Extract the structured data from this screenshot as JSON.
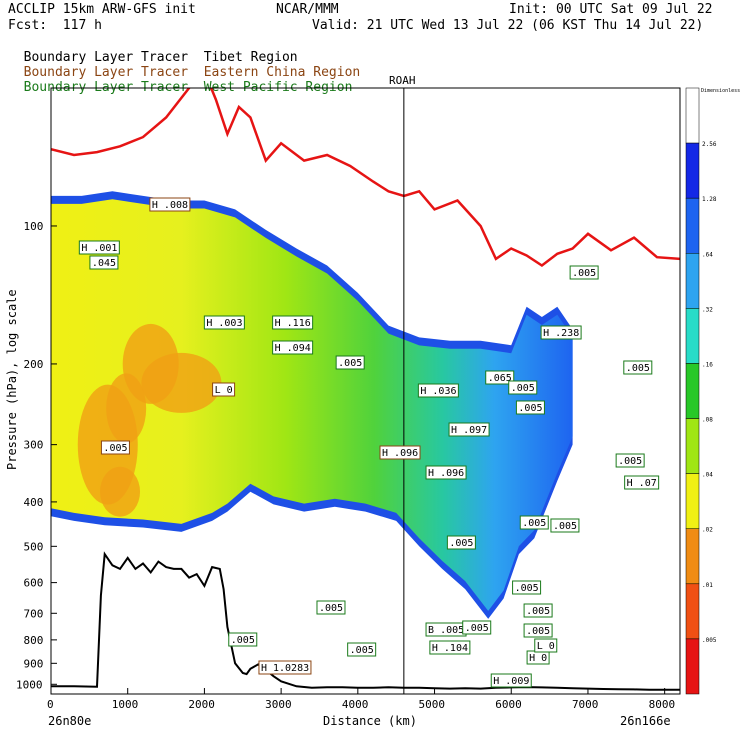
{
  "header": {
    "model": "ACCLIP 15km ARW-GFS init",
    "org": "NCAR/MMM",
    "init": "Init: 00 UTC Sat 09 Jul 22",
    "fcst": "Fcst:  117 h",
    "valid": "Valid: 21 UTC Wed 13 Jul 22 (06 KST Thu 14 Jul 22)"
  },
  "legend": [
    {
      "label": "Boundary Layer Tracer",
      "region": "Tibet Region",
      "color": "#000000"
    },
    {
      "label": "Boundary Layer Tracer",
      "region": "Eastern China Region",
      "color": "#8b4513"
    },
    {
      "label": "Boundary Layer Tracer",
      "region": "West Pacific Region",
      "color": "#1a7a1a"
    }
  ],
  "chart_data": {
    "type": "heatmap",
    "ylabel": "Pressure (hPa), log scale",
    "xlabel": "Distance (km)",
    "x_start_label": "26n80e",
    "x_end_label": "26n166e",
    "station_label": "ROAH",
    "station_x": 4600,
    "xlim": [
      0,
      8200
    ],
    "ylim": [
      1050,
      50
    ],
    "yscale": "log",
    "x_ticks": [
      "0",
      "1000",
      "2000",
      "3000",
      "4000",
      "5000",
      "6000",
      "7000",
      "8000"
    ],
    "x_tick_values": [
      0,
      1000,
      2000,
      3000,
      4000,
      5000,
      6000,
      7000,
      8000
    ],
    "y_ticks": [
      "100",
      "200",
      "300",
      "400",
      "500",
      "600",
      "700",
      "800",
      "900",
      "1000"
    ],
    "y_tick_values": [
      100,
      200,
      300,
      400,
      500,
      600,
      700,
      800,
      900,
      1000
    ],
    "colorbar_title": "Dimensionless",
    "colorbar_levels": [
      ".005",
      ".01",
      ".02",
      ".04",
      ".08",
      ".16",
      ".32",
      ".64",
      "1.28",
      "2.56"
    ],
    "colorbar_colors": [
      "#ffffff",
      "#1428e6",
      "#1e64f0",
      "#2ea4f0",
      "#28dcc8",
      "#28c828",
      "#a0e614",
      "#f0f014",
      "#f08c14",
      "#f05014",
      "#e61414"
    ],
    "tropopause": {
      "x": [
        0,
        300,
        600,
        900,
        1200,
        1500,
        1800,
        2000,
        2150,
        2300,
        2450,
        2600,
        2800,
        3000,
        3300,
        3600,
        3900,
        4200,
        4400,
        4600,
        4800,
        5000,
        5300,
        5600,
        5800,
        6000,
        6200,
        6400,
        6600,
        6800,
        7000,
        7300,
        7600,
        7900,
        8200
      ],
      "p": [
        68,
        70,
        69,
        67,
        64,
        58,
        50,
        46,
        53,
        63,
        55,
        58,
        72,
        66,
        72,
        70,
        74,
        80,
        84,
        86,
        84,
        92,
        88,
        100,
        118,
        112,
        116,
        122,
        115,
        112,
        104,
        113,
        106,
        117,
        118
      ]
    },
    "terrain": {
      "x": [
        0,
        300,
        600,
        650,
        700,
        800,
        900,
        1000,
        1100,
        1200,
        1300,
        1400,
        1500,
        1600,
        1700,
        1800,
        1900,
        2000,
        2100,
        2200,
        2250,
        2300,
        2400,
        2500,
        2550,
        2600,
        2700,
        2800,
        2900,
        3000,
        3200,
        3400,
        3600,
        3800,
        4000,
        4200,
        4400,
        4600,
        4800,
        5000,
        5200,
        5400,
        5600,
        5800,
        6000,
        6200,
        6400,
        6600,
        6800,
        7000,
        7200,
        7400,
        7600,
        7800,
        8000,
        8200
      ],
      "p": [
        1010,
        1010,
        1012,
        640,
        520,
        550,
        560,
        530,
        560,
        545,
        570,
        540,
        555,
        560,
        560,
        585,
        575,
        610,
        555,
        560,
        620,
        750,
        900,
        945,
        950,
        925,
        905,
        930,
        960,
        985,
        1010,
        1018,
        1015,
        1015,
        1018,
        1018,
        1015,
        1018,
        1018,
        1020,
        1022,
        1020,
        1022,
        1018,
        1016,
        1014,
        1016,
        1018,
        1020,
        1022,
        1024,
        1025,
        1026,
        1028,
        1028,
        1028
      ]
    },
    "tracer_top": {
      "x": [
        0,
        400,
        800,
        1200,
        1600,
        2000,
        2400,
        2800,
        3200,
        3600,
        4000,
        4400,
        4800,
        5200,
        5600,
        6000,
        6200,
        6400,
        6600,
        6800
      ],
      "p": [
        86,
        86,
        84,
        86,
        88,
        88,
        92,
        102,
        112,
        122,
        140,
        165,
        175,
        178,
        178,
        182,
        150,
        158,
        150,
        168
      ]
    },
    "tracer_bottom": {
      "x": [
        0,
        300,
        700,
        1200,
        1700,
        2100,
        2300,
        2600,
        2900,
        3300,
        3700,
        4100,
        4500,
        4800,
        5100,
        5400,
        5700,
        5900,
        6100,
        6300,
        6600,
        6800
      ],
      "p": [
        430,
        440,
        450,
        455,
        465,
        440,
        420,
        380,
        405,
        420,
        410,
        420,
        440,
        500,
        560,
        620,
        720,
        650,
        520,
        480,
        360,
        300
      ]
    },
    "labels": [
      "H .001",
      ".045",
      "H .008",
      "H .003",
      "H .116",
      "H .094",
      ".005",
      "L 0",
      ".005",
      "H .096",
      "H .096",
      ".065",
      ".005",
      "H .036",
      "H .097",
      ".005",
      "H .238",
      ".005",
      ".005",
      ".005",
      ".005",
      ".005",
      ".005",
      "H .07",
      ".005",
      "H 1.0283",
      "H .009",
      "H 0",
      ".005",
      ".005",
      ".005",
      "L 0",
      ".005",
      "H .104",
      ".005",
      "B .005",
      ".005"
    ]
  }
}
